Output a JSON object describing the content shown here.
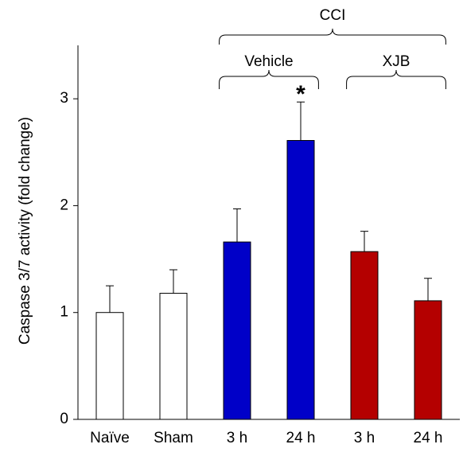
{
  "chart_data": {
    "type": "bar",
    "y_label": "Caspase 3/7 activity (fold change)",
    "categories": [
      "Naïve",
      "Sham",
      "3 h",
      "24 h",
      "3 h",
      "24 h"
    ],
    "values": [
      1.0,
      1.18,
      1.66,
      2.61,
      1.57,
      1.11
    ],
    "errors": [
      0.25,
      0.22,
      0.31,
      0.36,
      0.19,
      0.21
    ],
    "colors": [
      "#ffffff",
      "#ffffff",
      "#0000c8",
      "#0000c8",
      "#b40000",
      "#b40000"
    ],
    "ylim": [
      0,
      3.5
    ],
    "yticks": [
      0,
      1,
      2,
      3
    ],
    "groups": [
      {
        "label": "CCI",
        "categories": [
          2,
          5
        ]
      },
      {
        "label": "Vehicle",
        "categories": [
          2,
          3
        ]
      },
      {
        "label": "XJB",
        "categories": [
          4,
          5
        ]
      }
    ],
    "annotations": [
      {
        "text": "*",
        "category": 3
      }
    ]
  }
}
